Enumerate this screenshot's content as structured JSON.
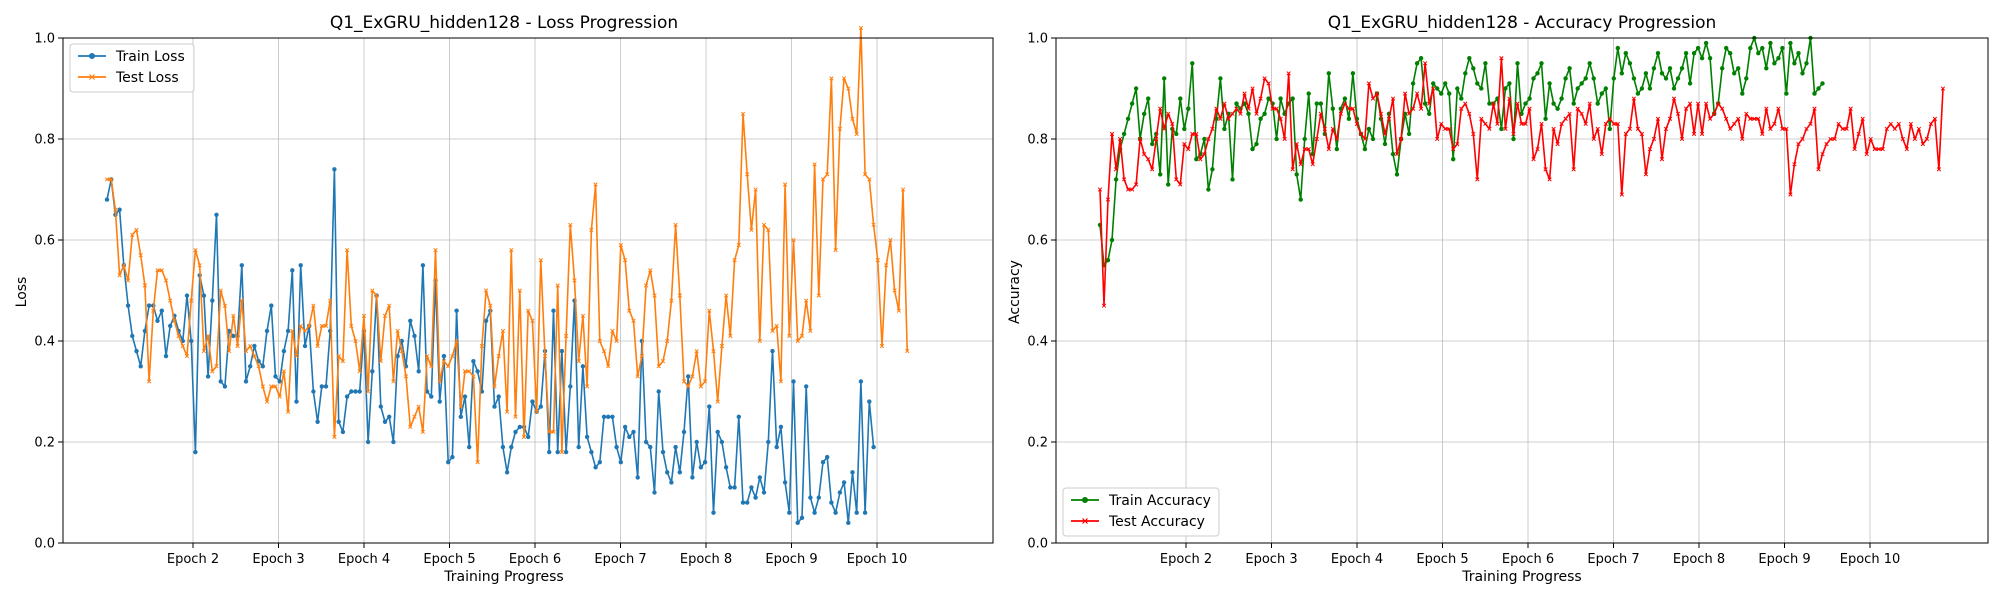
{
  "chart_data": [
    {
      "type": "line",
      "title": "Q1_ExGRU_hidden128 - Loss Progression",
      "xlabel": "Training Progress",
      "ylabel": "Loss",
      "ylim": [
        0,
        1
      ],
      "yticks": [
        "0.0",
        "0.2",
        "0.4",
        "0.6",
        "0.8",
        "1.0"
      ],
      "xticks": [
        "Epoch 2",
        "Epoch 3",
        "Epoch 4",
        "Epoch 5",
        "Epoch 6",
        "Epoch 7",
        "Epoch 8",
        "Epoch 9",
        "Epoch 10"
      ],
      "grid": true,
      "legend_position": "top-left",
      "series": [
        {
          "name": "Train Loss",
          "color": "#1f77b4",
          "marker": "circle",
          "values": [
            0.68,
            0.72,
            0.65,
            0.66,
            0.55,
            0.47,
            0.41,
            0.38,
            0.35,
            0.42,
            0.47,
            0.47,
            0.44,
            0.46,
            0.37,
            0.43,
            0.45,
            0.42,
            0.4,
            0.49,
            0.4,
            0.18,
            0.53,
            0.49,
            0.33,
            0.48,
            0.65,
            0.32,
            0.31,
            0.42,
            0.41,
            0.41,
            0.55,
            0.32,
            0.35,
            0.39,
            0.36,
            0.35,
            0.42,
            0.47,
            0.33,
            0.32,
            0.38,
            0.42,
            0.54,
            0.28,
            0.55,
            0.39,
            0.43,
            0.3,
            0.24,
            0.31,
            0.31,
            0.42,
            0.74,
            0.24,
            0.22,
            0.29,
            0.3,
            0.3,
            0.3,
            0.42,
            0.2,
            0.34,
            0.49,
            0.27,
            0.24,
            0.25,
            0.2,
            0.37,
            0.4,
            0.35,
            0.44,
            0.41,
            0.34,
            0.55,
            0.3,
            0.29,
            0.52,
            0.28,
            0.37,
            0.16,
            0.17,
            0.46,
            0.25,
            0.29,
            0.19,
            0.36,
            0.34,
            0.3,
            0.44,
            0.46,
            0.27,
            0.29,
            0.19,
            0.14,
            0.19,
            0.22,
            0.23,
            0.23,
            0.21,
            0.28,
            0.26,
            0.27,
            0.38,
            0.18,
            0.46,
            0.18,
            0.38,
            0.18,
            0.31,
            0.48,
            0.19,
            0.35,
            0.21,
            0.18,
            0.15,
            0.16,
            0.25,
            0.25,
            0.25,
            0.19,
            0.16,
            0.23,
            0.21,
            0.22,
            0.13,
            0.4,
            0.2,
            0.19,
            0.1,
            0.3,
            0.18,
            0.14,
            0.12,
            0.19,
            0.14,
            0.22,
            0.33,
            0.13,
            0.2,
            0.15,
            0.16,
            0.27,
            0.06,
            0.22,
            0.2,
            0.15,
            0.11,
            0.11,
            0.25,
            0.08,
            0.08,
            0.11,
            0.09,
            0.13,
            0.1,
            0.2,
            0.38,
            0.19,
            0.23,
            0.12,
            0.06,
            0.32,
            0.04,
            0.05,
            0.31,
            0.09,
            0.06,
            0.09,
            0.16,
            0.17,
            0.08,
            0.06,
            0.1,
            0.12,
            0.04,
            0.14,
            0.06,
            0.32,
            0.06,
            0.28,
            0.19
          ]
        },
        {
          "name": "Test Loss",
          "color": "#ff7f0e",
          "marker": "x",
          "values": [
            0.72,
            0.72,
            0.66,
            0.53,
            0.55,
            0.52,
            0.61,
            0.62,
            0.57,
            0.51,
            0.32,
            0.46,
            0.54,
            0.54,
            0.52,
            0.48,
            0.44,
            0.41,
            0.39,
            0.37,
            0.48,
            0.58,
            0.55,
            0.38,
            0.41,
            0.34,
            0.35,
            0.5,
            0.47,
            0.38,
            0.45,
            0.39,
            0.48,
            0.38,
            0.39,
            0.37,
            0.35,
            0.31,
            0.28,
            0.31,
            0.31,
            0.29,
            0.34,
            0.26,
            0.42,
            0.37,
            0.43,
            0.42,
            0.43,
            0.47,
            0.39,
            0.43,
            0.43,
            0.48,
            0.21,
            0.37,
            0.36,
            0.58,
            0.43,
            0.4,
            0.34,
            0.45,
            0.3,
            0.5,
            0.49,
            0.36,
            0.45,
            0.47,
            0.32,
            0.42,
            0.38,
            0.33,
            0.23,
            0.25,
            0.27,
            0.22,
            0.37,
            0.35,
            0.58,
            0.32,
            0.36,
            0.35,
            0.37,
            0.4,
            0.27,
            0.34,
            0.34,
            0.33,
            0.16,
            0.39,
            0.5,
            0.47,
            0.31,
            0.37,
            0.42,
            0.26,
            0.58,
            0.25,
            0.5,
            0.21,
            0.46,
            0.44,
            0.26,
            0.56,
            0.37,
            0.22,
            0.22,
            0.51,
            0.18,
            0.41,
            0.63,
            0.52,
            0.36,
            0.45,
            0.31,
            0.62,
            0.71,
            0.4,
            0.38,
            0.35,
            0.42,
            0.4,
            0.59,
            0.56,
            0.46,
            0.44,
            0.33,
            0.37,
            0.51,
            0.54,
            0.49,
            0.35,
            0.36,
            0.4,
            0.48,
            0.63,
            0.49,
            0.32,
            0.31,
            0.33,
            0.38,
            0.31,
            0.32,
            0.46,
            0.38,
            0.28,
            0.39,
            0.49,
            0.41,
            0.56,
            0.59,
            0.85,
            0.73,
            0.62,
            0.7,
            0.4,
            0.63,
            0.62,
            0.42,
            0.43,
            0.32,
            0.71,
            0.41,
            0.6,
            0.4,
            0.41,
            0.48,
            0.42,
            0.75,
            0.49,
            0.72,
            0.73,
            0.92,
            0.58,
            0.82,
            0.92,
            0.9,
            0.84,
            0.81,
            1.02,
            0.73,
            0.72,
            0.63,
            0.56,
            0.39,
            0.55,
            0.6,
            0.5,
            0.46,
            0.7,
            0.38
          ]
        }
      ]
    },
    {
      "type": "line",
      "title": "Q1_ExGRU_hidden128 - Accuracy Progression",
      "xlabel": "Training Progress",
      "ylabel": "Accuracy",
      "ylim": [
        0,
        1
      ],
      "yticks": [
        "0.0",
        "0.2",
        "0.4",
        "0.6",
        "0.8",
        "1.0"
      ],
      "xticks": [
        "Epoch 2",
        "Epoch 3",
        "Epoch 4",
        "Epoch 5",
        "Epoch 6",
        "Epoch 7",
        "Epoch 8",
        "Epoch 9",
        "Epoch 10"
      ],
      "grid": true,
      "legend_position": "bottom-left",
      "series": [
        {
          "name": "Train Accuracy",
          "color": "#008000",
          "marker": "circle",
          "values": [
            0.63,
            0.55,
            0.56,
            0.6,
            0.72,
            0.78,
            0.81,
            0.84,
            0.87,
            0.9,
            0.8,
            0.85,
            0.88,
            0.79,
            0.81,
            0.73,
            0.92,
            0.71,
            0.82,
            0.81,
            0.88,
            0.82,
            0.86,
            0.95,
            0.76,
            0.77,
            0.8,
            0.7,
            0.74,
            0.84,
            0.92,
            0.82,
            0.85,
            0.72,
            0.87,
            0.86,
            0.87,
            0.85,
            0.78,
            0.79,
            0.84,
            0.85,
            0.88,
            0.87,
            0.8,
            0.88,
            0.85,
            0.87,
            0.88,
            0.73,
            0.68,
            0.8,
            0.89,
            0.77,
            0.87,
            0.87,
            0.81,
            0.93,
            0.86,
            0.78,
            0.86,
            0.88,
            0.84,
            0.93,
            0.84,
            0.81,
            0.78,
            0.82,
            0.8,
            0.89,
            0.84,
            0.79,
            0.85,
            0.77,
            0.73,
            0.8,
            0.85,
            0.81,
            0.91,
            0.95,
            0.96,
            0.87,
            0.85,
            0.91,
            0.9,
            0.89,
            0.91,
            0.89,
            0.76,
            0.9,
            0.88,
            0.93,
            0.96,
            0.94,
            0.91,
            0.9,
            0.95,
            0.87,
            0.87,
            0.88,
            0.82,
            0.9,
            0.91,
            0.8,
            0.95,
            0.85,
            0.87,
            0.88,
            0.92,
            0.93,
            0.95,
            0.84,
            0.91,
            0.87,
            0.86,
            0.88,
            0.92,
            0.94,
            0.87,
            0.9,
            0.91,
            0.92,
            0.95,
            0.92,
            0.87,
            0.89,
            0.9,
            0.82,
            0.92,
            0.98,
            0.93,
            0.97,
            0.95,
            0.92,
            0.89,
            0.9,
            0.93,
            0.9,
            0.94,
            0.97,
            0.93,
            0.92,
            0.94,
            0.9,
            0.92,
            0.94,
            0.97,
            0.91,
            0.97,
            0.98,
            0.96,
            0.99,
            0.96,
            0.85,
            0.87,
            0.94,
            0.98,
            0.97,
            0.93,
            0.94,
            0.89,
            0.92,
            0.98,
            1.0,
            0.97,
            0.98,
            0.94,
            0.99,
            0.95,
            0.96,
            0.98,
            0.89,
            0.99,
            0.95,
            0.97,
            0.93,
            0.95,
            1.0,
            0.89,
            0.9,
            0.91
          ]
        },
        {
          "name": "Test Accuracy",
          "color": "#ff0000",
          "marker": "x",
          "values": [
            0.7,
            0.47,
            0.68,
            0.81,
            0.74,
            0.8,
            0.72,
            0.7,
            0.7,
            0.71,
            0.8,
            0.77,
            0.76,
            0.74,
            0.8,
            0.86,
            0.82,
            0.85,
            0.83,
            0.72,
            0.71,
            0.79,
            0.78,
            0.81,
            0.81,
            0.76,
            0.77,
            0.8,
            0.82,
            0.86,
            0.84,
            0.87,
            0.84,
            0.85,
            0.86,
            0.85,
            0.89,
            0.86,
            0.9,
            0.85,
            0.88,
            0.92,
            0.91,
            0.86,
            0.86,
            0.84,
            0.8,
            0.93,
            0.74,
            0.79,
            0.75,
            0.78,
            0.78,
            0.75,
            0.8,
            0.85,
            0.82,
            0.78,
            0.82,
            0.8,
            0.85,
            0.87,
            0.86,
            0.86,
            0.83,
            0.81,
            0.8,
            0.91,
            0.88,
            0.89,
            0.85,
            0.81,
            0.84,
            0.88,
            0.77,
            0.8,
            0.89,
            0.85,
            0.86,
            0.89,
            0.86,
            0.95,
            0.87,
            0.9,
            0.8,
            0.83,
            0.82,
            0.82,
            0.78,
            0.79,
            0.86,
            0.87,
            0.85,
            0.81,
            0.72,
            0.84,
            0.83,
            0.82,
            0.87,
            0.83,
            0.96,
            0.82,
            0.88,
            0.81,
            0.87,
            0.83,
            0.83,
            0.86,
            0.76,
            0.78,
            0.83,
            0.74,
            0.72,
            0.82,
            0.79,
            0.83,
            0.84,
            0.85,
            0.74,
            0.86,
            0.85,
            0.83,
            0.87,
            0.8,
            0.82,
            0.77,
            0.83,
            0.84,
            0.83,
            0.83,
            0.69,
            0.81,
            0.82,
            0.88,
            0.82,
            0.81,
            0.73,
            0.78,
            0.8,
            0.84,
            0.76,
            0.82,
            0.84,
            0.88,
            0.85,
            0.8,
            0.86,
            0.87,
            0.81,
            0.87,
            0.81,
            0.87,
            0.84,
            0.85,
            0.87,
            0.86,
            0.84,
            0.82,
            0.83,
            0.84,
            0.8,
            0.85,
            0.84,
            0.84,
            0.84,
            0.81,
            0.86,
            0.82,
            0.83,
            0.86,
            0.82,
            0.82,
            0.69,
            0.75,
            0.79,
            0.8,
            0.82,
            0.83,
            0.86,
            0.74,
            0.77,
            0.79,
            0.8,
            0.8,
            0.83,
            0.82,
            0.82,
            0.86,
            0.78,
            0.81,
            0.84,
            0.77,
            0.8,
            0.78,
            0.78,
            0.78,
            0.82,
            0.83,
            0.82,
            0.83,
            0.8,
            0.78,
            0.83,
            0.8,
            0.82,
            0.79,
            0.8,
            0.83,
            0.84,
            0.74,
            0.9
          ]
        }
      ]
    }
  ]
}
